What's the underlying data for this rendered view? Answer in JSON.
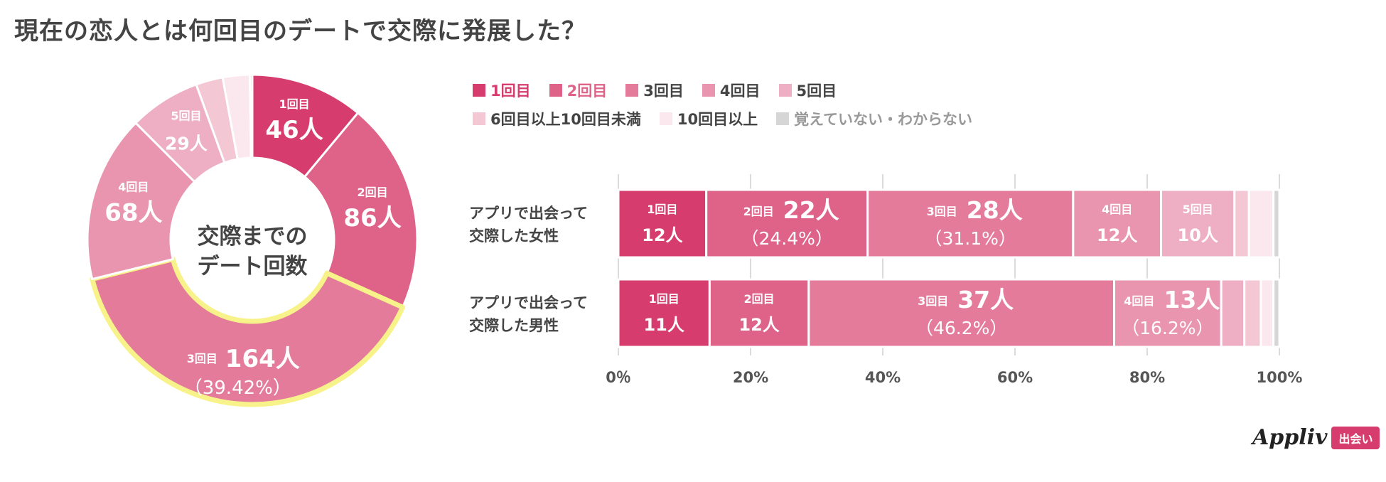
{
  "title": "現在の恋人とは何回目のデートで交際に発展した？",
  "colors": {
    "1回目": "#d63d6e",
    "2回目": "#df6389",
    "3回目": "#e47b9a",
    "4回目": "#e995b0",
    "5回目": "#eeaec4",
    "6回目以上10回目未満": "#f4c7d5",
    "10回目以上": "#fbe7ee",
    "覚えていない・わからない": "#d6d6d6"
  },
  "legend": [
    {
      "label": "1回目",
      "color": "#d63d6e",
      "text_color": "#d63d6e"
    },
    {
      "label": "2回目",
      "color": "#df6389",
      "text_color": "#df6389"
    },
    {
      "label": "3回目",
      "color": "#e47b9a",
      "text_color": "#444444"
    },
    {
      "label": "4回目",
      "color": "#e995b0",
      "text_color": "#444444"
    },
    {
      "label": "5回目",
      "color": "#eeaec4",
      "text_color": "#444444"
    },
    {
      "label": "6回目以上10回目未満",
      "color": "#f4c7d5",
      "text_color": "#444444"
    },
    {
      "label": "10回目以上",
      "color": "#fbe7ee",
      "text_color": "#444444"
    },
    {
      "label": "覚えていない・わからない",
      "color": "#d6d6d6",
      "text_color": "#999999"
    }
  ],
  "chart_data": [
    {
      "type": "pie",
      "center_label": [
        "交際までの",
        "デート回数"
      ],
      "highlight": "3回目",
      "slices": [
        {
          "label": "1回目",
          "count_text": "46人",
          "value": 46
        },
        {
          "label": "2回目",
          "count_text": "86人",
          "value": 86
        },
        {
          "label": "3回目",
          "count_text": "164人",
          "value": 164,
          "percent_text": "（39.42%）"
        },
        {
          "label": "4回目",
          "count_text": "68人",
          "value": 68
        },
        {
          "label": "5回目",
          "count_text": "29人",
          "value": 29
        },
        {
          "label": "6回目以上10回目未満",
          "value": 11
        },
        {
          "label": "10回目以上",
          "value": 11
        },
        {
          "label": "覚えていない・わからない",
          "value": 1
        }
      ]
    },
    {
      "type": "bar",
      "stacked": true,
      "orientation": "horizontal",
      "xlim": [
        0,
        100
      ],
      "ticks": [
        "0％",
        "20%",
        "40%",
        "60%",
        "80%",
        "100%"
      ],
      "rows": [
        {
          "label": [
            "アプリで出会って",
            "交際した女性"
          ],
          "segments": [
            {
              "cat": "1回目",
              "pct": 13.3,
              "label": "1回目",
              "count": "12人"
            },
            {
              "cat": "2回目",
              "pct": 24.4,
              "label": "2回目",
              "count": "22人",
              "percent": "（24.4%）"
            },
            {
              "cat": "3回目",
              "pct": 31.1,
              "label": "3回目",
              "count": "28人",
              "percent": "（31.1%）"
            },
            {
              "cat": "4回目",
              "pct": 13.3,
              "label": "4回目",
              "count": "12人"
            },
            {
              "cat": "5回目",
              "pct": 11.1,
              "label": "5回目",
              "count": "10人"
            },
            {
              "cat": "6回目以上10回目未満",
              "pct": 2.2
            },
            {
              "cat": "10回目以上",
              "pct": 3.7
            },
            {
              "cat": "覚えていない・わからない",
              "pct": 0.9
            }
          ]
        },
        {
          "label": [
            "アプリで出会って",
            "交際した男性"
          ],
          "segments": [
            {
              "cat": "1回目",
              "pct": 13.8,
              "label": "1回目",
              "count": "11人"
            },
            {
              "cat": "2回目",
              "pct": 15.0,
              "label": "2回目",
              "count": "12人"
            },
            {
              "cat": "3回目",
              "pct": 46.2,
              "label": "3回目",
              "count": "37人",
              "percent": "（46.2%）"
            },
            {
              "cat": "4回目",
              "pct": 16.2,
              "label": "4回目",
              "count": "13人",
              "percent": "（16.2%）"
            },
            {
              "cat": "5回目",
              "pct": 3.5
            },
            {
              "cat": "6回目以上10回目未満",
              "pct": 2.5
            },
            {
              "cat": "10回目以上",
              "pct": 1.9
            },
            {
              "cat": "覚えていない・わからない",
              "pct": 0.9
            }
          ]
        }
      ]
    }
  ],
  "brand": {
    "name": "Appliv",
    "badge": "出会い"
  }
}
